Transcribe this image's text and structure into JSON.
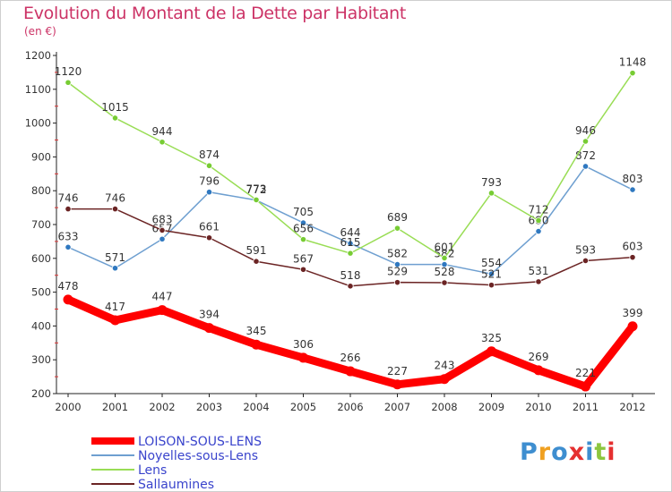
{
  "title": "Evolution du Montant de la Dette par Habitant",
  "subtitle": "(en €)",
  "logo": {
    "text": "Proxiti",
    "letters": [
      {
        "ch": "P",
        "color": "#3e8ed0"
      },
      {
        "ch": "r",
        "color": "#f0a020"
      },
      {
        "ch": "o",
        "color": "#3e8ed0"
      },
      {
        "ch": "x",
        "color": "#e53030"
      },
      {
        "ch": "i",
        "color": "#3e8ed0"
      },
      {
        "ch": "t",
        "color": "#8cc63f"
      },
      {
        "ch": "i",
        "color": "#e53030"
      }
    ]
  },
  "chart_data": {
    "type": "line",
    "title": "Evolution du Montant de la Dette par Habitant",
    "subtitle": "(en €)",
    "x": [
      "2000",
      "2001",
      "2002",
      "2003",
      "2004",
      "2005",
      "2006",
      "2007",
      "2008",
      "2009",
      "2010",
      "2011",
      "2012"
    ],
    "ylim": [
      200,
      1200
    ],
    "yticks": [
      200,
      300,
      400,
      500,
      600,
      700,
      800,
      900,
      1000,
      1100,
      1200
    ],
    "grid": false,
    "legend_position": "bottom-left",
    "series": [
      {
        "name": "Noyelles-sous-Lens",
        "color": "#6e9fd0",
        "marker": "#2f78c0",
        "values": [
          633,
          571,
          657,
          796,
          772,
          705,
          644,
          582,
          582,
          554,
          680,
          872,
          803
        ],
        "labels": [
          "633",
          "571",
          "657",
          "796",
          "772",
          "705",
          "644",
          "582",
          "582",
          "554",
          "680",
          "872",
          "803"
        ]
      },
      {
        "name": "Lens",
        "color": "#99dd55",
        "marker": "#77cc33",
        "values": [
          1120,
          1015,
          944,
          874,
          773,
          656,
          615,
          689,
          601,
          793,
          712,
          946,
          1148
        ],
        "labels": [
          "1120",
          "1015",
          "944",
          "874",
          "773",
          "656",
          "615",
          "689",
          "601",
          "793",
          "712",
          "946",
          "1148"
        ]
      },
      {
        "name": "Sallaumines",
        "color": "#6b2424",
        "marker": "#6b2424",
        "values": [
          746,
          746,
          683,
          661,
          591,
          567,
          518,
          529,
          528,
          521,
          531,
          593,
          603
        ],
        "labels": [
          "746",
          "746",
          "683",
          "661",
          "591",
          "567",
          "518",
          "529",
          "528",
          "521",
          "531",
          "593",
          "603"
        ]
      },
      {
        "name": "LOISON-SOUS-LENS",
        "color": "#ff0000",
        "marker": "#ff0000",
        "values": [
          478,
          417,
          447,
          394,
          345,
          306,
          266,
          227,
          243,
          325,
          269,
          221,
          399
        ],
        "labels": [
          "478",
          "417",
          "447",
          "394",
          "345",
          "306",
          "266",
          "227",
          "243",
          "325",
          "269",
          "221",
          "399"
        ]
      }
    ],
    "legend_order": [
      "LOISON-SOUS-LENS",
      "Noyelles-sous-Lens",
      "Lens",
      "Sallaumines"
    ]
  }
}
